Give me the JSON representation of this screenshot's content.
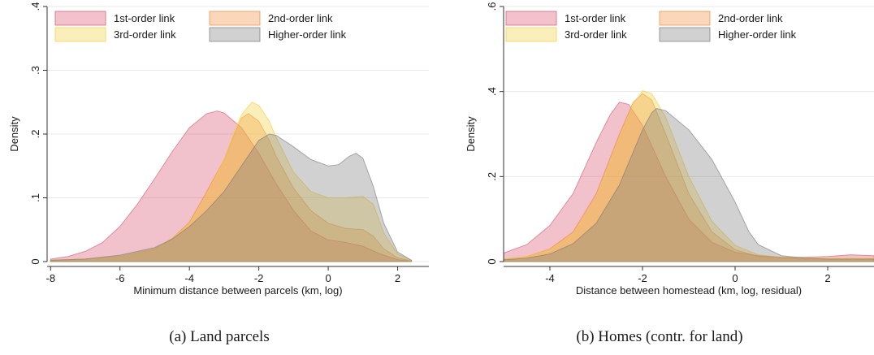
{
  "charts": [
    {
      "type": "area",
      "caption": "(a)  Land parcels",
      "xlabel": "Minimum distance between parcels (km, log)",
      "ylabel": "Density",
      "xlim": [
        -8.1,
        2.9
      ],
      "ylim": [
        0,
        0.4
      ],
      "xticks": [
        -8,
        -6,
        -4,
        -2,
        0,
        2
      ],
      "xtick_labels": [
        "-8",
        "-6",
        "-4",
        "-2",
        "0",
        "2"
      ],
      "yticks": [
        0,
        0.1,
        0.2,
        0.3,
        0.4
      ],
      "ytick_labels": [
        "0",
        ".1",
        ".2",
        ".3",
        ".4"
      ],
      "grid": "horizontal",
      "legend": "top",
      "series": [
        {
          "name": "1st-order link",
          "color": "#d9516d",
          "x": [
            -8,
            -7.5,
            -7,
            -6.5,
            -6,
            -5.5,
            -5,
            -4.5,
            -4,
            -3.5,
            -3.2,
            -3,
            -2.5,
            -2,
            -1.5,
            -1,
            -0.5,
            0,
            0.5,
            1,
            1.5,
            2,
            2.3
          ],
          "y": [
            0.004,
            0.008,
            0.016,
            0.03,
            0.055,
            0.09,
            0.13,
            0.172,
            0.21,
            0.232,
            0.236,
            0.233,
            0.21,
            0.17,
            0.122,
            0.08,
            0.048,
            0.034,
            0.03,
            0.024,
            0.012,
            0.003,
            0.001
          ]
        },
        {
          "name": "2nd-order link",
          "color": "#f08c3c",
          "x": [
            -8,
            -7,
            -6,
            -5,
            -4.5,
            -4,
            -3.5,
            -3,
            -2.7,
            -2.5,
            -2.3,
            -2,
            -1.7,
            -1.5,
            -1,
            -0.5,
            0,
            0.5,
            1,
            1.3,
            1.6,
            2,
            2.4
          ],
          "y": [
            0.002,
            0.004,
            0.008,
            0.02,
            0.036,
            0.062,
            0.11,
            0.16,
            0.2,
            0.225,
            0.232,
            0.22,
            0.19,
            0.165,
            0.115,
            0.08,
            0.06,
            0.052,
            0.05,
            0.04,
            0.02,
            0.006,
            0.001
          ]
        },
        {
          "name": "3rd-order link",
          "color": "#f2cf3c",
          "x": [
            -8,
            -7,
            -6,
            -5,
            -4.5,
            -4,
            -3.5,
            -3,
            -2.7,
            -2.5,
            -2.2,
            -2,
            -1.7,
            -1.5,
            -1,
            -0.5,
            0,
            0.5,
            1,
            1.3,
            1.6,
            2,
            2.4
          ],
          "y": [
            0.002,
            0.004,
            0.008,
            0.02,
            0.035,
            0.06,
            0.105,
            0.16,
            0.205,
            0.23,
            0.25,
            0.245,
            0.22,
            0.195,
            0.14,
            0.11,
            0.1,
            0.1,
            0.102,
            0.09,
            0.045,
            0.012,
            0.002
          ]
        },
        {
          "name": "Higher-order link",
          "color": "#7a7a7a",
          "x": [
            -8,
            -7,
            -6,
            -5,
            -4.5,
            -4,
            -3.5,
            -3,
            -2.5,
            -2,
            -1.7,
            -1.5,
            -1,
            -0.5,
            0,
            0.3,
            0.6,
            0.8,
            1,
            1.3,
            1.6,
            2,
            2.4
          ],
          "y": [
            0.002,
            0.004,
            0.01,
            0.022,
            0.035,
            0.055,
            0.08,
            0.11,
            0.15,
            0.19,
            0.2,
            0.198,
            0.18,
            0.16,
            0.15,
            0.152,
            0.165,
            0.17,
            0.162,
            0.118,
            0.06,
            0.015,
            0.002
          ]
        }
      ]
    },
    {
      "type": "area",
      "caption": "(b)  Homes (contr. for land)",
      "xlabel": "Distance between homestead (km, log, residual)",
      "ylabel": "Density",
      "xlim": [
        -5,
        3
      ],
      "ylim": [
        0,
        0.6
      ],
      "xticks": [
        -4,
        -2,
        0,
        2
      ],
      "xtick_labels": [
        "-4",
        "-2",
        "0",
        "2"
      ],
      "yticks": [
        0,
        0.2,
        0.4,
        0.6
      ],
      "ytick_labels": [
        "0",
        ".2",
        ".4",
        ".6"
      ],
      "grid": "horizontal",
      "legend": "top",
      "series": [
        {
          "name": "1st-order link",
          "color": "#d9516d",
          "x": [
            -5,
            -4.5,
            -4,
            -3.5,
            -3,
            -2.7,
            -2.5,
            -2.3,
            -2,
            -1.5,
            -1,
            -0.5,
            0,
            0.5,
            1,
            1.5,
            2,
            2.5,
            3
          ],
          "y": [
            0.02,
            0.04,
            0.085,
            0.16,
            0.28,
            0.345,
            0.375,
            0.37,
            0.32,
            0.2,
            0.1,
            0.045,
            0.022,
            0.014,
            0.01,
            0.01,
            0.012,
            0.016,
            0.014
          ]
        },
        {
          "name": "2nd-order link",
          "color": "#f08c3c",
          "x": [
            -5,
            -4.5,
            -4,
            -3.5,
            -3,
            -2.5,
            -2.2,
            -2,
            -1.8,
            -1.5,
            -1,
            -0.5,
            0,
            0.5,
            1,
            1.5,
            2,
            2.5,
            3
          ],
          "y": [
            0.006,
            0.012,
            0.03,
            0.07,
            0.16,
            0.3,
            0.375,
            0.395,
            0.38,
            0.3,
            0.16,
            0.07,
            0.028,
            0.012,
            0.008,
            0.006,
            0.006,
            0.006,
            0.006
          ]
        },
        {
          "name": "3rd-order link",
          "color": "#f2cf3c",
          "x": [
            -5,
            -4.5,
            -4,
            -3.5,
            -3,
            -2.5,
            -2.2,
            -2,
            -1.8,
            -1.5,
            -1,
            -0.5,
            0,
            0.5,
            1,
            1.5,
            2,
            2.5,
            3
          ],
          "y": [
            0.006,
            0.012,
            0.028,
            0.065,
            0.15,
            0.29,
            0.37,
            0.402,
            0.395,
            0.34,
            0.2,
            0.095,
            0.038,
            0.016,
            0.01,
            0.008,
            0.008,
            0.008,
            0.008
          ]
        },
        {
          "name": "Higher-order link",
          "color": "#7a7a7a",
          "x": [
            -5,
            -4.5,
            -4,
            -3.5,
            -3,
            -2.5,
            -2,
            -1.8,
            -1.7,
            -1.5,
            -1,
            -0.5,
            0,
            0.3,
            0.5,
            1,
            1.5,
            2,
            2.5,
            3
          ],
          "y": [
            0.004,
            0.008,
            0.018,
            0.042,
            0.09,
            0.18,
            0.31,
            0.35,
            0.36,
            0.355,
            0.31,
            0.24,
            0.14,
            0.07,
            0.04,
            0.014,
            0.008,
            0.006,
            0.006,
            0.006
          ]
        }
      ]
    }
  ]
}
